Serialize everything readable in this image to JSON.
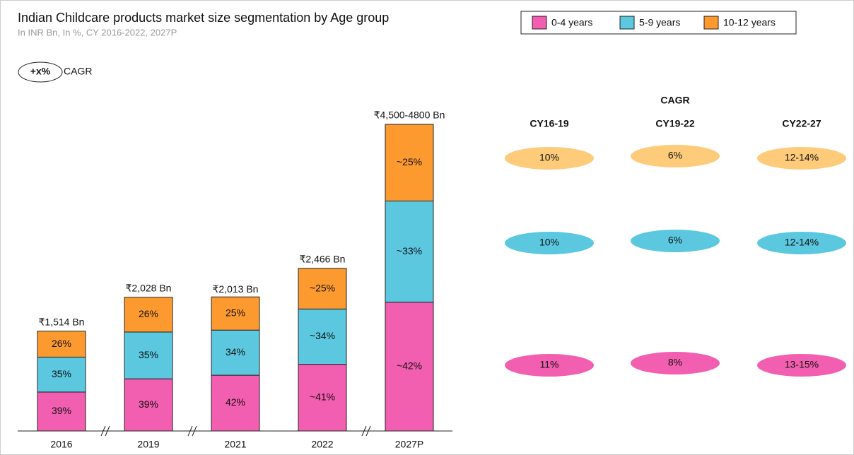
{
  "chart_data": {
    "type": "stacked_bar",
    "title": "Indian Childcare products market size segmentation by Age group",
    "subtitle": "In INR Bn, In %, CY 2016-2022, 2027P",
    "cagr_note": {
      "symbol": "+x%",
      "text": "CAGR"
    },
    "categories": [
      "2016",
      "2019",
      "2021",
      "2022",
      "2027P"
    ],
    "totals": {
      "values": [
        1514,
        2028,
        2013,
        2466,
        4650
      ],
      "value_labels": [
        "₹1,514 Bn",
        "₹2,028 Bn",
        "₹2,013 Bn",
        "₹2,466 Bn",
        "₹4,500-4800 Bn"
      ]
    },
    "series": [
      {
        "name": "0-4 years",
        "color": "#f25eb0",
        "values": [
          39,
          39,
          42,
          41,
          42
        ],
        "value_labels": [
          "39%",
          "39%",
          "42%",
          "~41%",
          "~42%"
        ]
      },
      {
        "name": "5-9 years",
        "color": "#5bc8e0",
        "values": [
          35,
          35,
          34,
          34,
          33
        ],
        "value_labels": [
          "35%",
          "35%",
          "34%",
          "~34%",
          "~33%"
        ]
      },
      {
        "name": "10-12 years",
        "color": "#fd9a2f",
        "values": [
          26,
          26,
          25,
          25,
          25
        ],
        "value_labels": [
          "26%",
          "26%",
          "25%",
          "~25%",
          "~25%"
        ]
      }
    ],
    "cagr": {
      "title": "CAGR",
      "columns": [
        "CY16-19",
        "CY19-22",
        "CY22-27"
      ],
      "rows": [
        {
          "color": "#fdcb7a",
          "cells": [
            "10%",
            "6%",
            "12-14%"
          ]
        },
        {
          "color": "#5bc8e0",
          "cells": [
            "10%",
            "6%",
            "12-14%"
          ]
        },
        {
          "color": "#f25eb0",
          "cells": [
            "11%",
            "8%",
            "13-15%"
          ]
        }
      ]
    }
  }
}
